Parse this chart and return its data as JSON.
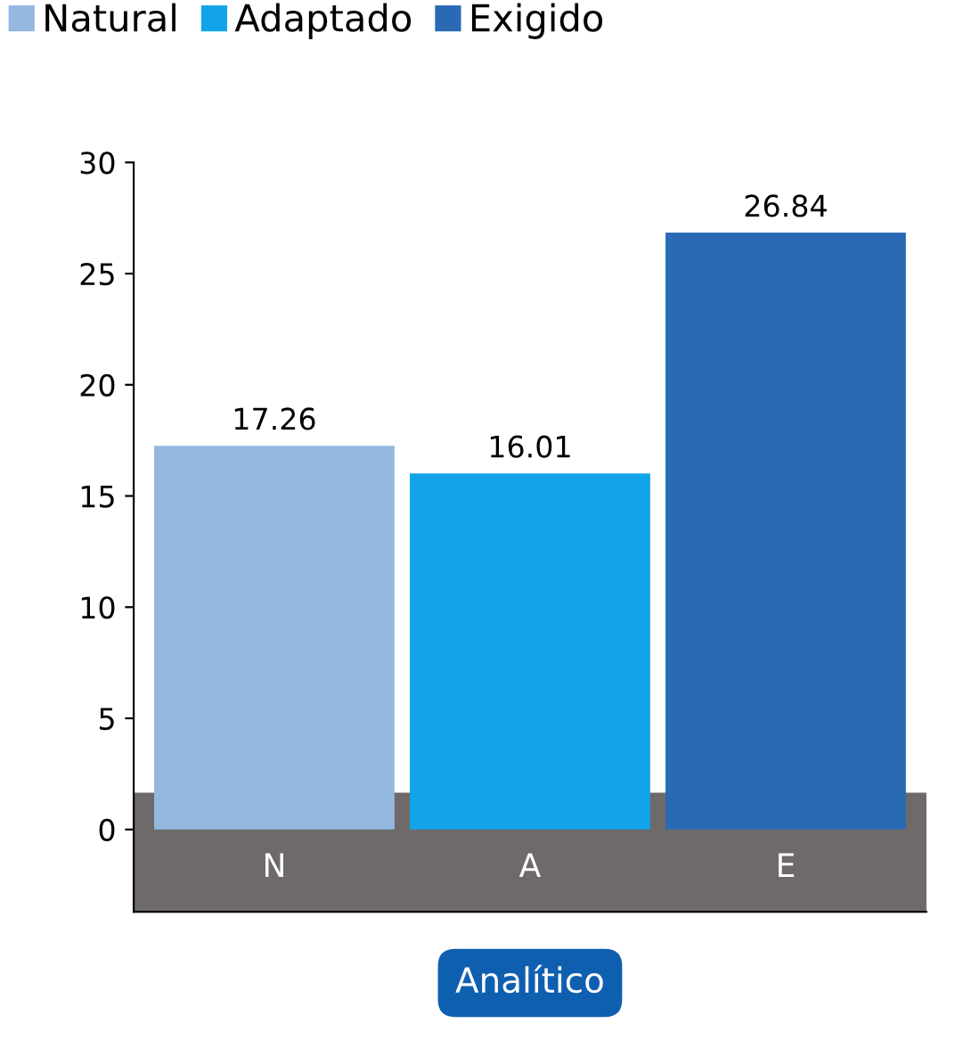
{
  "chart_data": {
    "type": "bar",
    "categories": [
      "N",
      "A",
      "E"
    ],
    "series": [
      {
        "name": "Natural",
        "color": "#94b8e0",
        "values": [
          17.26,
          null,
          null
        ]
      },
      {
        "name": "Adaptado",
        "color": "#12a4e8",
        "values": [
          null,
          16.01,
          null
        ]
      },
      {
        "name": "Exigido",
        "color": "#2a6ab4",
        "values": [
          null,
          null,
          26.84
        ]
      }
    ],
    "xlabel": "Analítico",
    "ylim": [
      -3.7,
      30
    ],
    "yticks": [
      0,
      5,
      10,
      15,
      20,
      25,
      30
    ],
    "data_labels": true,
    "legend": "top left",
    "grid": false
  }
}
